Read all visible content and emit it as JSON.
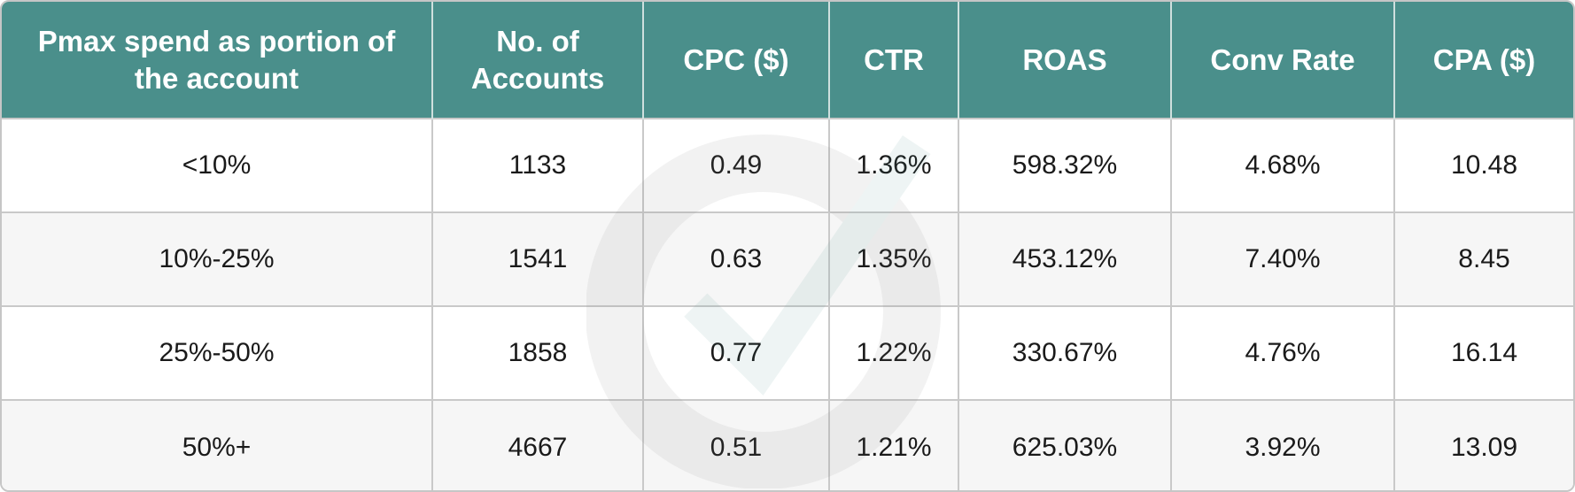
{
  "table": {
    "headers": [
      "Pmax spend as portion of the account",
      "No. of Accounts",
      "CPC ($)",
      "CTR",
      "ROAS",
      "Conv Rate",
      "CPA ($)"
    ],
    "rows": [
      [
        "<10%",
        "1133",
        "0.49",
        "1.36%",
        "598.32%",
        "4.68%",
        "10.48"
      ],
      [
        "10%-25%",
        "1541",
        "0.63",
        "1.35%",
        "453.12%",
        "7.40%",
        "8.45"
      ],
      [
        "25%-50%",
        "1858",
        "0.77",
        "1.22%",
        "330.67%",
        "4.76%",
        "16.14"
      ],
      [
        "50%+",
        "4667",
        "0.51",
        "1.21%",
        "625.03%",
        "3.92%",
        "13.09"
      ]
    ]
  },
  "colors": {
    "header_bg": "#4a8f8b",
    "header_text": "#ffffff",
    "row_alt_bg": "#f6f6f6",
    "border": "#c9c9c9"
  },
  "watermark_icon": "circle-check-logo-icon"
}
